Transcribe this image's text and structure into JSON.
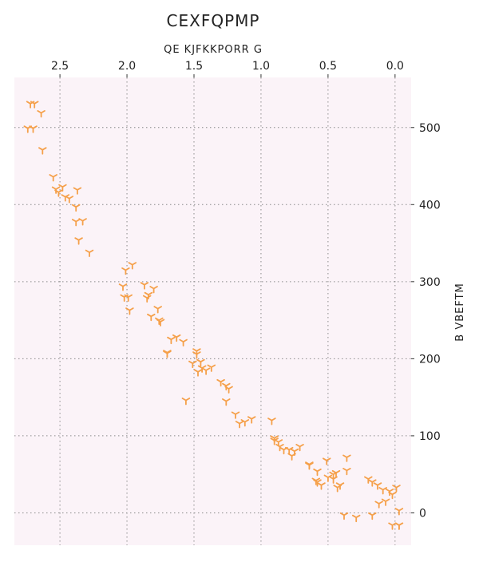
{
  "chart_data": {
    "type": "scatter",
    "title": "CEXFQPMP",
    "xlabel": "QE KJFKKPORR G",
    "ylabel": "B VBEFTM",
    "x_axis_position": "top",
    "y_axis_position": "right",
    "x_inverted": true,
    "xlim": [
      2.84,
      -0.12
    ],
    "ylim": [
      -42,
      565
    ],
    "x_ticks": [
      2.5,
      2.0,
      1.5,
      1.0,
      0.5,
      0.0
    ],
    "x_tick_labels": [
      "2.5",
      "2.0",
      "1.5",
      "1.0",
      "0.5",
      "0.0"
    ],
    "y_ticks": [
      0,
      100,
      200,
      300,
      400,
      500
    ],
    "y_tick_labels": [
      "0",
      "100",
      "200",
      "300",
      "400",
      "500"
    ],
    "grid": true,
    "grid_style": "dotted",
    "background_color": "#fbf3f8",
    "marker": "tri_down",
    "marker_color": "#f5a04a",
    "x": [
      2.72,
      2.69,
      2.64,
      2.74,
      2.63,
      2.55,
      2.53,
      2.48,
      2.46,
      2.51,
      2.38,
      2.38,
      2.33,
      2.28,
      2.36,
      2.01,
      1.96,
      2.03,
      2.02,
      1.99,
      1.87,
      1.84,
      1.85,
      1.77,
      1.75,
      1.76,
      1.82,
      1.67,
      1.7,
      1.7,
      1.63,
      1.58,
      1.51,
      1.45,
      1.44,
      1.41,
      1.37,
      1.48,
      1.48,
      1.47,
      1.3,
      1.24,
      1.26,
      1.26,
      1.19,
      1.07,
      0.87,
      0.9,
      0.86,
      0.83,
      0.9,
      0.79,
      0.77,
      0.75,
      0.64,
      0.58,
      0.55,
      0.59,
      0.36,
      0.44,
      0.51,
      0.46,
      0.43,
      0.36,
      0.2,
      0.13,
      0.09,
      0.04,
      0.02,
      -0.01,
      -0.03,
      -0.03,
      0.02,
      -0.03,
      0.07,
      0.12,
      0.17,
      0.17,
      0.29,
      0.38,
      0.41,
      0.46,
      0.5,
      0.58,
      0.64,
      0.71,
      0.92,
      1.12,
      1.16,
      1.56,
      1.8,
      1.98,
      2.43,
      2.37,
      2.7
    ],
    "y": [
      531,
      531,
      519,
      499,
      471,
      436,
      420,
      423,
      410,
      416,
      397,
      378,
      379,
      338,
      354,
      315,
      322,
      294,
      280,
      280,
      296,
      283,
      279,
      265,
      248,
      250,
      255,
      225,
      208,
      207,
      228,
      222,
      194,
      196,
      188,
      185,
      189,
      210,
      206,
      183,
      170,
      161,
      165,
      145,
      128,
      122,
      92,
      94,
      86,
      82,
      97,
      82,
      74,
      80,
      62,
      40,
      36,
      42,
      72,
      52,
      68,
      50,
      33,
      55,
      44,
      36,
      30,
      28,
      24,
      33,
      3,
      -16,
      -16,
      -16,
      15,
      12,
      40,
      -3,
      -6,
      -3,
      36,
      44,
      46,
      54,
      63,
      86,
      120,
      118,
      116,
      146,
      291,
      263,
      408,
      419,
      499
    ]
  }
}
